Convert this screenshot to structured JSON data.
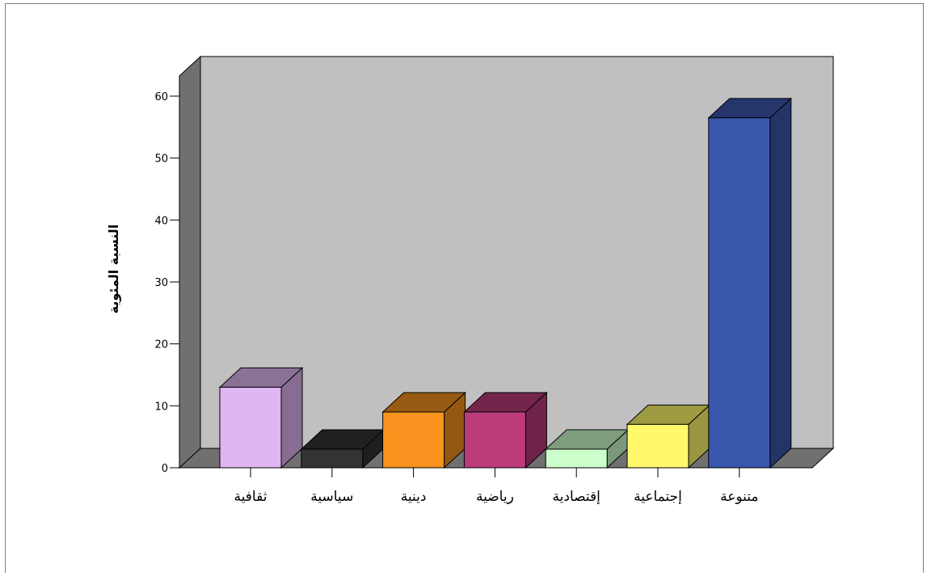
{
  "chart_data": {
    "type": "bar",
    "categories": [
      "ثقافية",
      "سياسية",
      "دينية",
      "رياضية",
      "إقتصادية",
      "إجتماعية",
      "متنوعة"
    ],
    "values": [
      13,
      3,
      9,
      9,
      3,
      7,
      56.5
    ],
    "colors": [
      "#dfb6f2",
      "#333333",
      "#f7931e",
      "#bb3b7b",
      "#ccffcc",
      "#fff96b",
      "#3a57ae"
    ],
    "ylabel": "النسبة المئوية",
    "yticks": [
      0,
      10,
      20,
      30,
      40,
      50,
      60
    ],
    "ylim": [
      0,
      60
    ],
    "grid": false,
    "legend": false,
    "style": "3d-bar"
  }
}
